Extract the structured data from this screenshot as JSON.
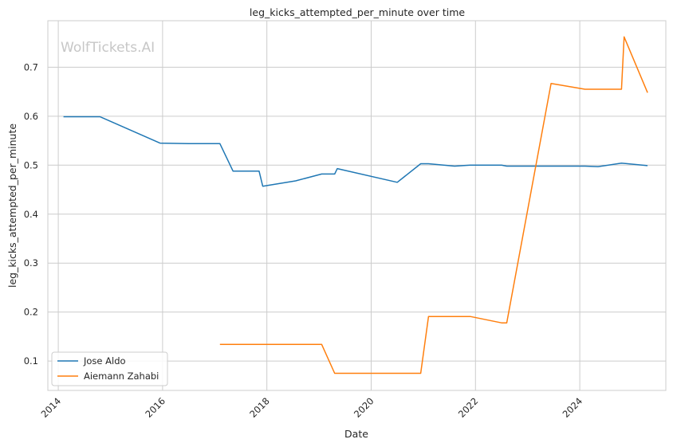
{
  "chart_data": {
    "type": "line",
    "title": "leg_kicks_attempted_per_minute over time",
    "xlabel": "Date",
    "ylabel": "leg_kicks_attempted_per_minute",
    "watermark": "WolfTickets.AI",
    "xlim": [
      2013.8,
      2025.65
    ],
    "ylim": [
      0.04,
      0.795
    ],
    "x_ticks": [
      2014,
      2016,
      2018,
      2020,
      2022,
      2024
    ],
    "y_ticks": [
      0.1,
      0.2,
      0.3,
      0.4,
      0.5,
      0.6,
      0.7
    ],
    "grid": true,
    "legend_position": "lower-left",
    "series": [
      {
        "name": "Jose Aldo",
        "color": "#1f77b4",
        "x": [
          2014.1,
          2014.8,
          2015.95,
          2016.5,
          2017.1,
          2017.35,
          2017.85,
          2017.92,
          2018.55,
          2019.05,
          2019.3,
          2019.35,
          2020.5,
          2020.95,
          2021.1,
          2021.6,
          2021.9,
          2022.5,
          2022.6,
          2023.0,
          2024.1,
          2024.35,
          2024.8,
          2025.3
        ],
        "y": [
          0.599,
          0.599,
          0.545,
          0.544,
          0.544,
          0.488,
          0.488,
          0.457,
          0.468,
          0.482,
          0.482,
          0.493,
          0.465,
          0.503,
          0.503,
          0.498,
          0.5,
          0.5,
          0.498,
          0.498,
          0.498,
          0.497,
          0.504,
          0.499
        ]
      },
      {
        "name": "Aiemann Zahabi",
        "color": "#ff7f0e",
        "x": [
          2017.1,
          2019.05,
          2019.3,
          2020.95,
          2021.1,
          2021.9,
          2022.5,
          2022.6,
          2023.45,
          2024.1,
          2024.8,
          2024.85,
          2025.3
        ],
        "y": [
          0.134,
          0.134,
          0.075,
          0.075,
          0.191,
          0.191,
          0.178,
          0.178,
          0.667,
          0.655,
          0.655,
          0.762,
          0.648
        ]
      }
    ]
  }
}
